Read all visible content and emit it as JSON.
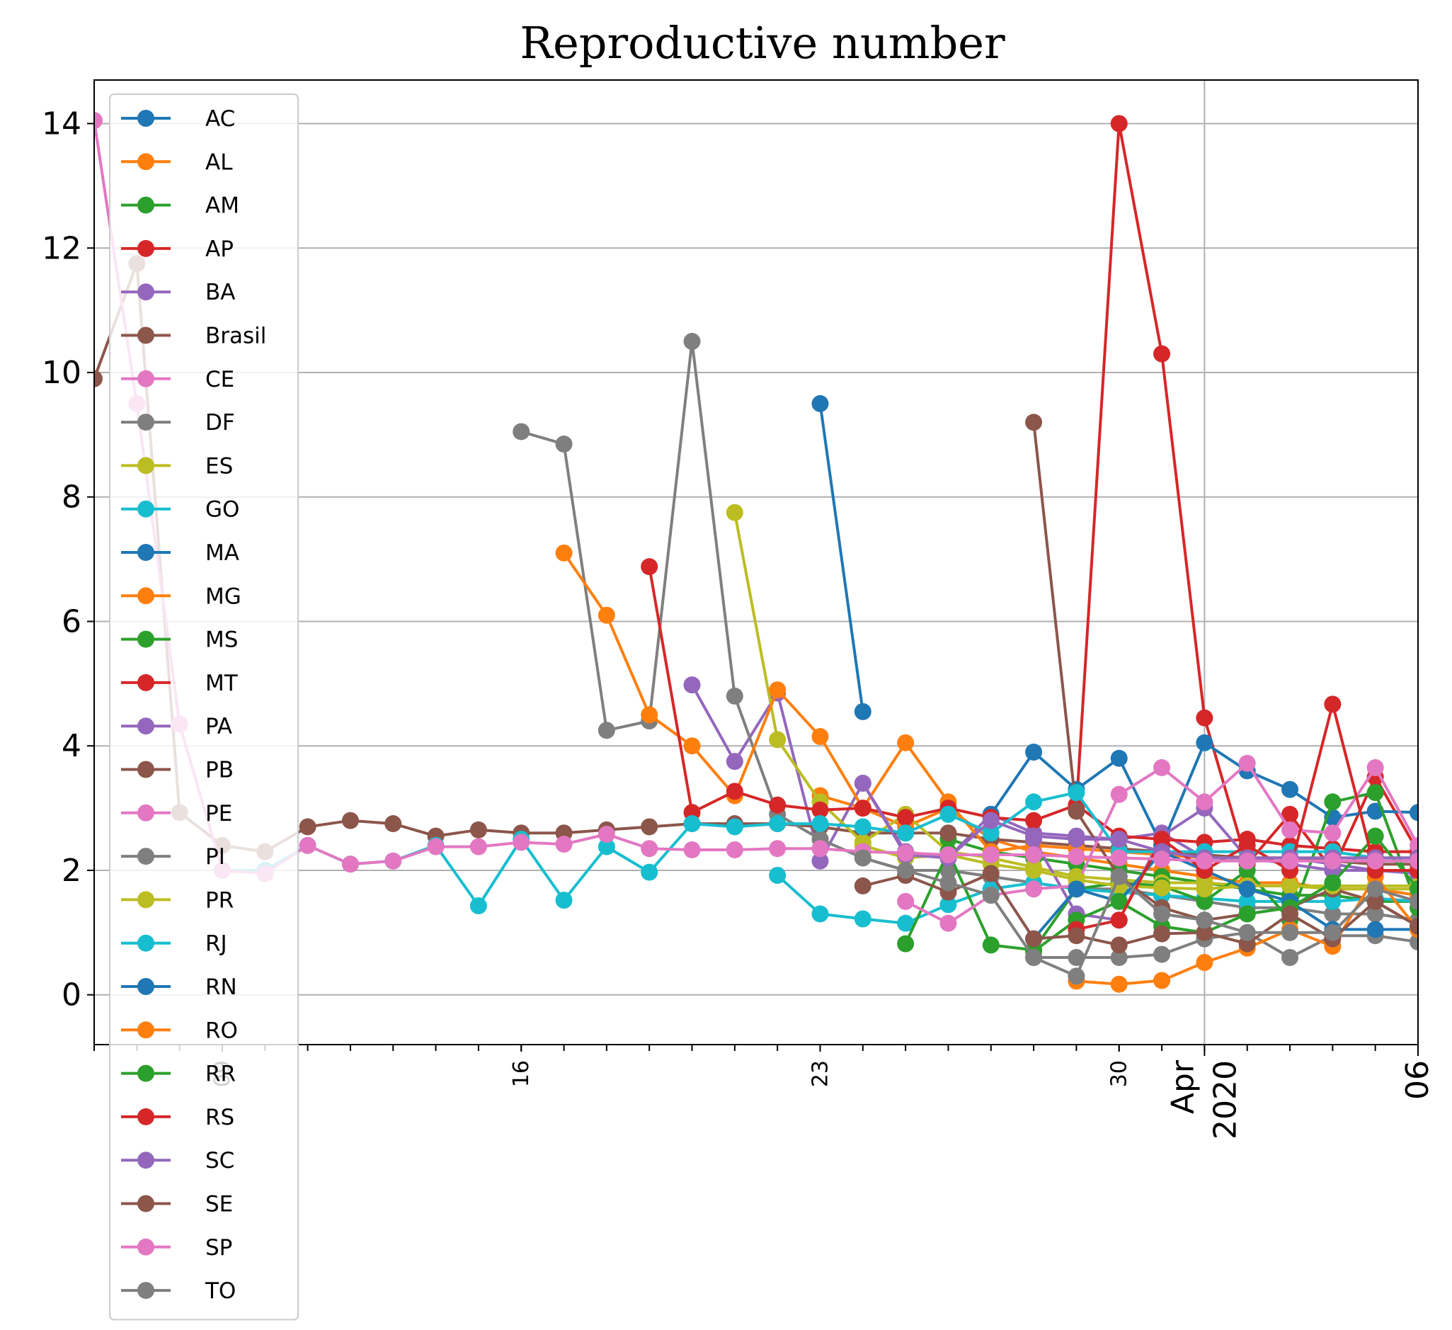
{
  "chart_data": {
    "type": "line",
    "title": "Reproductive number",
    "xlabel": "",
    "ylabel": "",
    "x_axis_kind": "date",
    "x_range": [
      "2020-03-06",
      "2020-04-06"
    ],
    "ylim": [
      -0.8,
      14.7
    ],
    "y_ticks": [
      0,
      2,
      4,
      6,
      8,
      10,
      12,
      14
    ],
    "x_tick_labels": [
      {
        "date": "2020-03-09",
        "label": "09",
        "size": "minor"
      },
      {
        "date": "2020-03-16",
        "label": "16",
        "size": "minor"
      },
      {
        "date": "2020-03-23",
        "label": "23",
        "size": "minor"
      },
      {
        "date": "2020-03-30",
        "label": "30",
        "size": "minor"
      },
      {
        "date": "2020-04-01",
        "label": "Apr\n2020",
        "size": "major"
      },
      {
        "date": "2020-04-06",
        "label": "06",
        "size": "major"
      }
    ],
    "grid": true,
    "legend_position": "upper-left",
    "colors": [
      "#1f77b4",
      "#ff7f0e",
      "#2ca02c",
      "#d62728",
      "#9467bd",
      "#8c564b",
      "#e377c2",
      "#7f7f7f",
      "#bcbd22",
      "#17becf"
    ],
    "series": [
      {
        "name": "AC",
        "x": [
          "2020-03-23",
          "2020-03-24"
        ],
        "y": [
          9.5,
          4.55
        ]
      },
      {
        "name": "AL",
        "x": [
          "2020-03-23",
          "2020-03-24",
          "2020-03-25",
          "2020-03-26",
          "2020-03-27",
          "2020-03-28",
          "2020-03-29",
          "2020-03-30",
          "2020-03-31",
          "2020-04-01",
          "2020-04-02",
          "2020-04-03",
          "2020-04-04",
          "2020-04-05",
          "2020-04-06"
        ],
        "y": [
          3.2,
          3.0,
          2.7,
          3.0,
          2.5,
          2.3,
          2.2,
          2.1,
          2.0,
          1.9,
          1.8,
          1.8,
          1.7,
          1.7,
          1.6
        ]
      },
      {
        "name": "AM",
        "x": [
          "2020-03-26",
          "2020-03-27",
          "2020-03-28",
          "2020-03-29",
          "2020-03-30",
          "2020-03-31",
          "2020-04-01",
          "2020-04-02",
          "2020-04-03",
          "2020-04-04",
          "2020-04-05",
          "2020-04-06"
        ],
        "y": [
          2.5,
          2.3,
          2.2,
          2.1,
          2.0,
          1.9,
          1.8,
          1.7,
          1.6,
          1.6,
          1.5,
          1.5
        ]
      },
      {
        "name": "AP",
        "x": [
          "2020-03-29",
          "2020-03-30",
          "2020-03-31",
          "2020-04-01",
          "2020-04-02",
          "2020-04-03",
          "2020-04-04",
          "2020-04-05",
          "2020-04-06"
        ],
        "y": [
          3.0,
          14.0,
          10.3,
          4.45,
          2.1,
          2.9,
          2.0,
          3.5,
          2.3
        ]
      },
      {
        "name": "BA",
        "x": [
          "2020-03-20",
          "2020-03-21",
          "2020-03-22",
          "2020-03-23",
          "2020-03-24",
          "2020-03-25",
          "2020-03-26",
          "2020-03-27",
          "2020-03-28",
          "2020-03-29",
          "2020-03-30",
          "2020-03-31",
          "2020-04-01",
          "2020-04-02",
          "2020-04-03",
          "2020-04-04",
          "2020-04-05",
          "2020-04-06"
        ],
        "y": [
          4.98,
          3.75,
          4.85,
          2.15,
          3.4,
          2.3,
          2.2,
          2.9,
          2.6,
          2.55,
          2.5,
          2.6,
          2.2,
          2.2,
          2.2,
          2.1,
          2.0,
          2.0
        ]
      },
      {
        "name": "Brasil",
        "x": [
          "2020-03-06",
          "2020-03-07",
          "2020-03-08",
          "2020-03-09",
          "2020-03-10",
          "2020-03-11",
          "2020-03-12",
          "2020-03-13",
          "2020-03-14",
          "2020-03-15",
          "2020-03-16",
          "2020-03-17",
          "2020-03-18",
          "2020-03-19",
          "2020-03-20",
          "2020-03-21",
          "2020-03-22",
          "2020-03-23",
          "2020-03-24",
          "2020-03-25",
          "2020-03-26",
          "2020-03-27",
          "2020-03-28",
          "2020-03-29",
          "2020-03-30",
          "2020-03-31",
          "2020-04-01",
          "2020-04-02",
          "2020-04-03",
          "2020-04-04",
          "2020-04-05",
          "2020-04-06"
        ],
        "y": [
          9.9,
          11.75,
          2.93,
          2.4,
          2.3,
          2.7,
          2.8,
          2.75,
          2.55,
          2.65,
          2.6,
          2.6,
          2.65,
          2.7,
          2.75,
          2.75,
          2.75,
          2.7,
          2.6,
          2.6,
          2.6,
          2.5,
          2.45,
          2.4,
          2.35,
          2.3,
          2.25,
          2.2,
          2.2,
          2.15,
          2.1,
          2.1
        ]
      },
      {
        "name": "CE",
        "x": [
          "2020-03-06",
          "2020-03-07",
          "2020-03-08",
          "2020-03-09",
          "2020-03-10"
        ],
        "y": [
          14.05,
          9.5,
          4.35,
          2.0,
          1.95
        ]
      },
      {
        "name": "DF",
        "x": [
          "2020-03-16",
          "2020-03-17",
          "2020-03-18",
          "2020-03-19",
          "2020-03-20",
          "2020-03-21",
          "2020-03-22",
          "2020-03-23",
          "2020-03-24",
          "2020-03-25",
          "2020-03-26",
          "2020-03-27",
          "2020-03-28",
          "2020-03-29",
          "2020-03-30",
          "2020-03-31",
          "2020-04-01",
          "2020-04-02",
          "2020-04-03",
          "2020-04-04",
          "2020-04-05",
          "2020-04-06"
        ],
        "y": [
          9.05,
          8.85,
          4.25,
          4.4,
          10.5,
          4.8,
          2.9,
          2.5,
          2.2,
          2.0,
          2.0,
          1.9,
          1.8,
          1.7,
          1.7,
          1.6,
          1.5,
          1.4,
          1.4,
          1.3,
          1.3,
          1.2
        ]
      },
      {
        "name": "ES",
        "x": [
          "2020-03-21",
          "2020-03-22",
          "2020-03-23",
          "2020-03-24",
          "2020-03-25",
          "2020-03-26",
          "2020-03-27",
          "2020-03-28",
          "2020-03-29",
          "2020-03-30",
          "2020-03-31",
          "2020-04-01",
          "2020-04-02",
          "2020-04-03",
          "2020-04-04",
          "2020-04-05",
          "2020-04-06"
        ],
        "y": [
          7.75,
          4.1,
          3.1,
          2.45,
          2.9,
          2.3,
          2.2,
          2.05,
          1.9,
          1.85,
          1.8,
          1.8,
          1.75,
          1.75,
          1.7,
          1.7,
          1.7
        ]
      },
      {
        "name": "GO",
        "x": [
          "2020-03-22",
          "2020-03-23",
          "2020-03-24",
          "2020-03-25",
          "2020-03-26",
          "2020-03-27",
          "2020-03-28",
          "2020-03-29",
          "2020-03-30",
          "2020-03-31",
          "2020-04-01",
          "2020-04-02",
          "2020-04-03",
          "2020-04-04",
          "2020-04-05",
          "2020-04-06"
        ],
        "y": [
          1.92,
          1.3,
          1.22,
          1.15,
          1.45,
          1.7,
          1.8,
          1.7,
          1.65,
          1.6,
          1.55,
          1.5,
          1.5,
          1.5,
          1.55,
          1.5
        ]
      },
      {
        "name": "MA",
        "x": [
          "2020-03-27",
          "2020-03-28",
          "2020-03-29",
          "2020-03-30",
          "2020-03-31",
          "2020-04-01",
          "2020-04-02",
          "2020-04-03",
          "2020-04-04",
          "2020-04-05",
          "2020-04-06"
        ],
        "y": [
          2.9,
          3.9,
          3.3,
          3.8,
          2.4,
          4.05,
          3.6,
          3.3,
          2.85,
          2.95,
          2.93
        ]
      },
      {
        "name": "MG",
        "x": [
          "2020-03-17",
          "2020-03-18",
          "2020-03-19",
          "2020-03-20",
          "2020-03-21",
          "2020-03-22",
          "2020-03-23",
          "2020-03-24",
          "2020-03-25",
          "2020-03-26",
          "2020-03-27",
          "2020-03-28",
          "2020-03-29",
          "2020-03-30",
          "2020-03-31",
          "2020-04-01",
          "2020-04-02",
          "2020-04-03",
          "2020-04-04",
          "2020-04-05",
          "2020-04-06"
        ],
        "y": [
          7.1,
          6.1,
          4.5,
          4.0,
          3.2,
          4.9,
          4.15,
          3.0,
          4.05,
          3.1,
          2.3,
          2.4,
          2.35,
          2.3,
          2.25,
          2.2,
          2.2,
          2.2,
          2.2,
          2.2,
          2.2
        ]
      },
      {
        "name": "MS",
        "x": [
          "2020-03-25",
          "2020-03-26",
          "2020-03-27",
          "2020-03-28",
          "2020-03-29",
          "2020-03-30",
          "2020-03-31",
          "2020-04-01",
          "2020-04-02",
          "2020-04-03",
          "2020-04-04",
          "2020-04-05",
          "2020-04-06"
        ],
        "y": [
          0.82,
          2.3,
          0.8,
          0.72,
          1.7,
          1.8,
          1.75,
          1.5,
          2.0,
          1.2,
          3.1,
          3.25,
          1.4
        ]
      },
      {
        "name": "MT",
        "x": [
          "2020-03-19",
          "2020-03-20",
          "2020-03-21",
          "2020-03-22",
          "2020-03-23",
          "2020-03-24",
          "2020-03-25",
          "2020-03-26",
          "2020-03-27",
          "2020-03-28",
          "2020-03-29",
          "2020-03-30",
          "2020-03-31",
          "2020-04-01",
          "2020-04-02",
          "2020-04-03",
          "2020-04-04",
          "2020-04-05",
          "2020-04-06"
        ],
        "y": [
          6.88,
          2.93,
          3.27,
          3.05,
          2.97,
          3.0,
          2.85,
          3.0,
          2.85,
          2.8,
          3.05,
          2.55,
          2.5,
          2.45,
          2.5,
          2.4,
          2.35,
          2.3,
          2.3
        ]
      },
      {
        "name": "PA",
        "x": [
          "2020-03-28",
          "2020-03-29",
          "2020-03-30",
          "2020-03-31",
          "2020-04-01",
          "2020-04-02",
          "2020-04-03",
          "2020-04-04",
          "2020-04-05",
          "2020-04-06"
        ],
        "y": [
          2.5,
          1.3,
          1.2,
          2.55,
          3.0,
          2.2,
          2.1,
          2.0,
          2.0,
          1.95
        ]
      },
      {
        "name": "PB",
        "x": [
          "2020-03-28",
          "2020-03-29",
          "2020-03-30",
          "2020-03-31",
          "2020-04-01",
          "2020-04-02",
          "2020-04-03",
          "2020-04-04",
          "2020-04-05",
          "2020-04-06"
        ],
        "y": [
          9.2,
          2.95,
          1.9,
          1.4,
          1.2,
          1.3,
          1.4,
          1.7,
          1.5,
          1.1
        ]
      },
      {
        "name": "PE",
        "x": [
          "2020-03-25",
          "2020-03-26",
          "2020-03-27",
          "2020-03-28",
          "2020-03-29",
          "2020-03-30",
          "2020-03-31",
          "2020-04-01",
          "2020-04-02",
          "2020-04-03",
          "2020-04-04",
          "2020-04-05",
          "2020-04-06"
        ],
        "y": [
          1.5,
          1.15,
          1.6,
          1.7,
          1.75,
          3.22,
          3.65,
          3.1,
          3.72,
          2.65,
          2.6,
          3.65,
          2.4
        ]
      },
      {
        "name": "PI",
        "x": [
          "2020-03-28",
          "2020-03-29",
          "2020-03-30",
          "2020-03-31",
          "2020-04-01",
          "2020-04-02",
          "2020-04-03",
          "2020-04-04",
          "2020-04-05",
          "2020-04-06"
        ],
        "y": [
          0.6,
          0.6,
          0.6,
          0.65,
          0.9,
          1.0,
          0.6,
          0.95,
          0.95,
          0.85
        ]
      },
      {
        "name": "PR",
        "x": [
          "2020-03-24",
          "2020-03-25",
          "2020-03-26",
          "2020-03-27",
          "2020-03-28",
          "2020-03-29",
          "2020-03-30",
          "2020-03-31",
          "2020-04-01",
          "2020-04-02",
          "2020-04-03",
          "2020-04-04",
          "2020-04-05",
          "2020-04-06"
        ],
        "y": [
          2.4,
          2.2,
          2.25,
          2.1,
          2.0,
          1.85,
          1.75,
          1.72,
          1.7,
          1.75,
          1.75,
          1.75,
          1.75,
          1.75
        ]
      },
      {
        "name": "RJ",
        "x": [
          "2020-03-09",
          "2020-03-10",
          "2020-03-11",
          "2020-03-12",
          "2020-03-13",
          "2020-03-14",
          "2020-03-15",
          "2020-03-16",
          "2020-03-17",
          "2020-03-18",
          "2020-03-19",
          "2020-03-20",
          "2020-03-21",
          "2020-03-22",
          "2020-03-23",
          "2020-03-24",
          "2020-03-25",
          "2020-03-26",
          "2020-03-27",
          "2020-03-28",
          "2020-03-29",
          "2020-03-30",
          "2020-03-31",
          "2020-04-01",
          "2020-04-02",
          "2020-04-03",
          "2020-04-04",
          "2020-04-05",
          "2020-04-06"
        ],
        "y": [
          2.0,
          2.0,
          2.4,
          2.1,
          2.15,
          2.4,
          1.43,
          2.5,
          1.52,
          2.38,
          1.97,
          2.75,
          2.7,
          2.75,
          2.75,
          2.7,
          2.6,
          2.9,
          2.6,
          3.1,
          3.25,
          2.3,
          2.3,
          2.3,
          2.3,
          2.3,
          2.3,
          2.2,
          2.2
        ]
      },
      {
        "name": "RN",
        "x": [
          "2020-03-28",
          "2020-03-29",
          "2020-03-30",
          "2020-03-31",
          "2020-04-01",
          "2020-04-02",
          "2020-04-03",
          "2020-04-04",
          "2020-04-05",
          "2020-04-06"
        ],
        "y": [
          0.9,
          1.7,
          1.5,
          2.3,
          2.0,
          1.7,
          1.5,
          1.05,
          1.05,
          1.05
        ]
      },
      {
        "name": "RO",
        "x": [
          "2020-03-29",
          "2020-03-30",
          "2020-03-31",
          "2020-04-01",
          "2020-04-02",
          "2020-04-03",
          "2020-04-04",
          "2020-04-05",
          "2020-04-06"
        ],
        "y": [
          0.22,
          0.17,
          0.23,
          0.52,
          0.75,
          1.05,
          0.78,
          1.9,
          1.05
        ]
      },
      {
        "name": "RR",
        "x": [
          "2020-03-28",
          "2020-03-29",
          "2020-03-30",
          "2020-03-31",
          "2020-04-01",
          "2020-04-02",
          "2020-04-03",
          "2020-04-04",
          "2020-04-05",
          "2020-04-06"
        ],
        "y": [
          0.7,
          1.2,
          1.5,
          1.1,
          1.0,
          1.3,
          1.4,
          1.8,
          2.55,
          1.7
        ]
      },
      {
        "name": "RS",
        "x": [
          "2020-03-29",
          "2020-03-30",
          "2020-03-31",
          "2020-04-01",
          "2020-04-02",
          "2020-04-03",
          "2020-04-04",
          "2020-04-05",
          "2020-04-06"
        ],
        "y": [
          1.05,
          1.2,
          2.5,
          2.0,
          2.4,
          2.0,
          4.67,
          2.0,
          2.0
        ]
      },
      {
        "name": "SC",
        "x": [
          "2020-03-24",
          "2020-03-25",
          "2020-03-26",
          "2020-03-27",
          "2020-03-28",
          "2020-03-29",
          "2020-03-30",
          "2020-03-31",
          "2020-04-01",
          "2020-04-02",
          "2020-04-03",
          "2020-04-04",
          "2020-04-05",
          "2020-04-06"
        ],
        "y": [
          3.4,
          2.25,
          2.2,
          2.8,
          2.55,
          2.5,
          2.5,
          2.3,
          2.2,
          2.2,
          2.2,
          2.2,
          2.2,
          2.2
        ]
      },
      {
        "name": "SE",
        "x": [
          "2020-03-24",
          "2020-03-25",
          "2020-03-26",
          "2020-03-27",
          "2020-03-28",
          "2020-03-29",
          "2020-03-30",
          "2020-03-31",
          "2020-04-01",
          "2020-04-02",
          "2020-04-03",
          "2020-04-04",
          "2020-04-05",
          "2020-04-06"
        ],
        "y": [
          1.75,
          1.92,
          1.65,
          1.95,
          0.9,
          0.95,
          0.8,
          0.98,
          1.0,
          0.82,
          1.3,
          0.9,
          1.5,
          1.1
        ]
      },
      {
        "name": "SP",
        "x": [
          "2020-03-09",
          "2020-03-10",
          "2020-03-11",
          "2020-03-12",
          "2020-03-13",
          "2020-03-14",
          "2020-03-15",
          "2020-03-16",
          "2020-03-17",
          "2020-03-18",
          "2020-03-19",
          "2020-03-20",
          "2020-03-21",
          "2020-03-22",
          "2020-03-23",
          "2020-03-24",
          "2020-03-25",
          "2020-03-26",
          "2020-03-27",
          "2020-03-28",
          "2020-03-29",
          "2020-03-30",
          "2020-03-31",
          "2020-04-01",
          "2020-04-02",
          "2020-04-03",
          "2020-04-04",
          "2020-04-05",
          "2020-04-06"
        ],
        "y": [
          2.0,
          1.95,
          2.4,
          2.1,
          2.15,
          2.38,
          2.38,
          2.45,
          2.42,
          2.58,
          2.35,
          2.33,
          2.33,
          2.35,
          2.35,
          2.3,
          2.28,
          2.25,
          2.25,
          2.25,
          2.22,
          2.2,
          2.18,
          2.15,
          2.15,
          2.15,
          2.15,
          2.15,
          2.15
        ]
      },
      {
        "name": "TO",
        "x": [
          "2020-03-24",
          "2020-03-25",
          "2020-03-26",
          "2020-03-27",
          "2020-03-28",
          "2020-03-29",
          "2020-03-30",
          "2020-03-31",
          "2020-04-01",
          "2020-04-02",
          "2020-04-03",
          "2020-04-04",
          "2020-04-05",
          "2020-04-06"
        ],
        "y": [
          2.2,
          2.0,
          1.8,
          1.6,
          0.6,
          0.3,
          1.9,
          1.3,
          1.2,
          1.0,
          1.0,
          1.0,
          1.7,
          1.5
        ]
      }
    ]
  }
}
